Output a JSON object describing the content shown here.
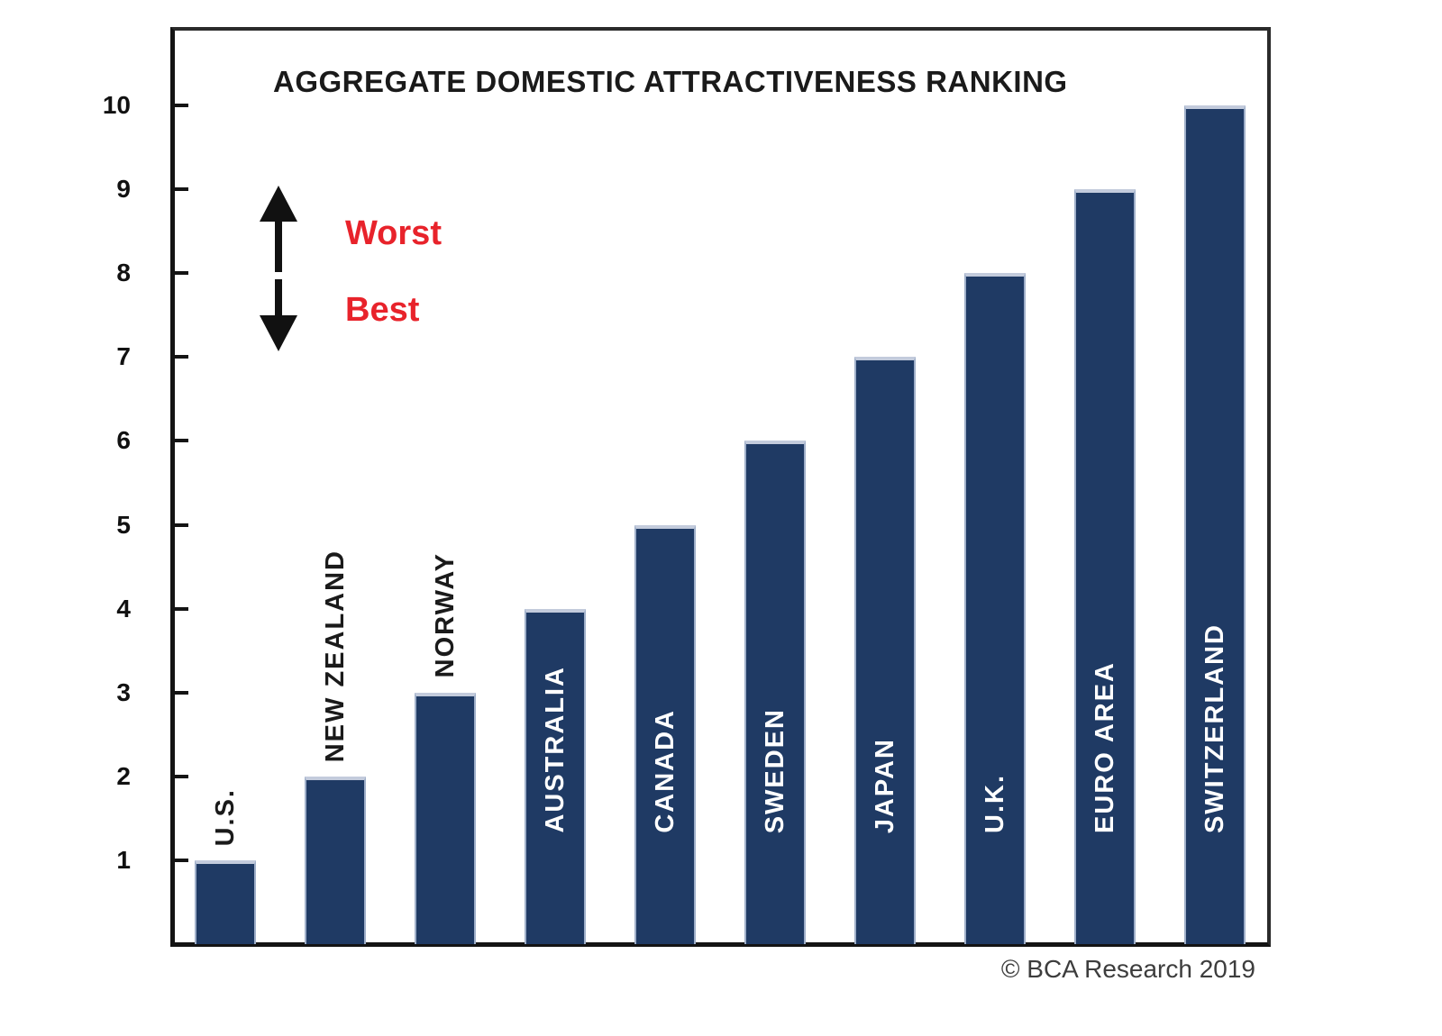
{
  "title": "AGGREGATE DOMESTIC ATTRACTIVENESS RANKING",
  "annotations": {
    "up_label": "Worst",
    "down_label": "Best"
  },
  "footer": {
    "credit": "© BCA Research 2019"
  },
  "colors": {
    "bar_fill": "#1f3a64",
    "bar_top_edge": "#c3cbdc",
    "label_outside": "#1a1a1a",
    "label_inside": "#ffffff",
    "annotation_red": "#e8232b",
    "axis": "#141414",
    "title_text": "#1a1a1a"
  },
  "chart_data": {
    "type": "bar",
    "orientation": "vertical",
    "title": "AGGREGATE DOMESTIC ATTRACTIVENESS RANKING",
    "categories": [
      "U.S.",
      "NEW ZEALAND",
      "NORWAY",
      "AUSTRALIA",
      "CANADA",
      "SWEDEN",
      "JAPAN",
      "U.K.",
      "EURO AREA",
      "SWITZERLAND"
    ],
    "values": [
      1,
      2,
      3,
      4,
      5,
      6,
      7,
      8,
      9,
      10
    ],
    "xlabel": "",
    "ylabel": "",
    "ylim": [
      0,
      10
    ],
    "yticks": [
      "1",
      "2",
      "3",
      "4",
      "5",
      "6",
      "7",
      "8",
      "9",
      "10"
    ],
    "grid": false,
    "legend": false,
    "bar_label_placement": [
      "above",
      "above",
      "above",
      "inside",
      "inside",
      "inside",
      "inside",
      "inside",
      "inside",
      "inside"
    ],
    "direction_annotations": {
      "up": "Worst",
      "down": "Best"
    },
    "credit": "© BCA Research 2019"
  }
}
